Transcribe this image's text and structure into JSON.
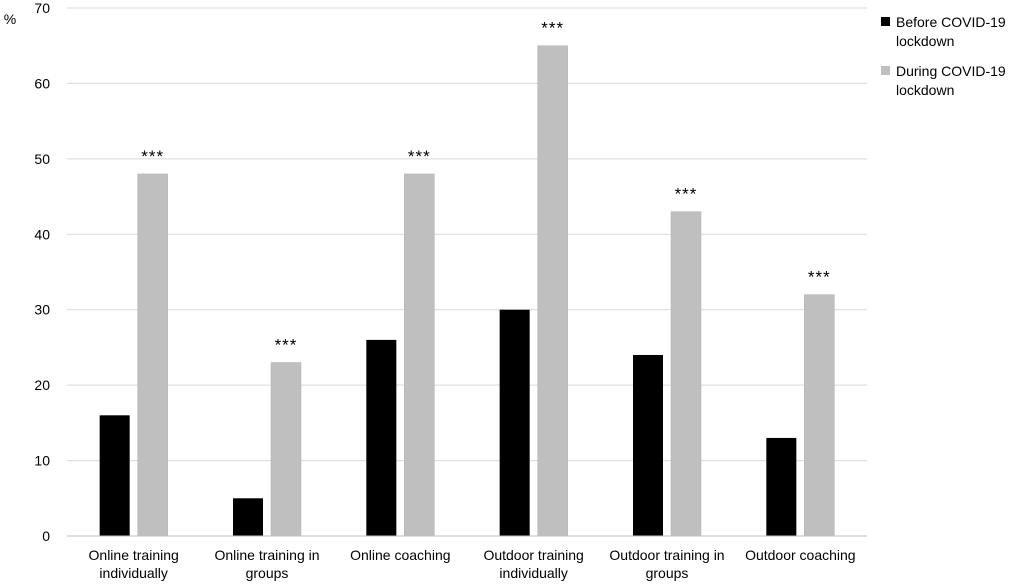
{
  "chart_data": {
    "type": "bar",
    "y_unit_label": "%",
    "ylim": [
      0,
      70
    ],
    "yticks": [
      0,
      10,
      20,
      30,
      40,
      50,
      60,
      70
    ],
    "grid": true,
    "legend_position": "top-right",
    "categories": [
      [
        "Online training",
        "individually"
      ],
      [
        "Online training in",
        "groups"
      ],
      [
        "Online coaching"
      ],
      [
        "Outdoor training",
        "individually"
      ],
      [
        "Outdoor training in",
        "groups"
      ],
      [
        "Outdoor coaching"
      ]
    ],
    "series": [
      {
        "name": [
          "Before COVID-19",
          "lockdown"
        ],
        "color": "#000000",
        "values": [
          16,
          5,
          26,
          30,
          24,
          13
        ]
      },
      {
        "name": [
          "During COVID-19",
          "lockdown"
        ],
        "color": "#bfbfbf",
        "values": [
          48,
          23,
          48,
          65,
          43,
          32
        ]
      }
    ],
    "annotations": [
      "***",
      "***",
      "***",
      "***",
      "***",
      "***"
    ]
  }
}
